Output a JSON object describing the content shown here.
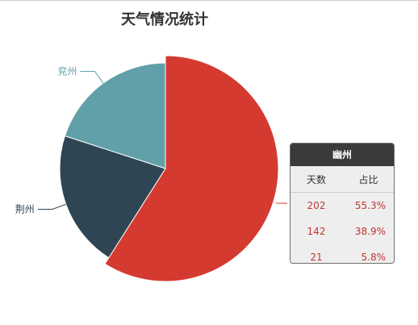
{
  "chart_data": {
    "type": "pie",
    "title": "天气情况统计",
    "series": [
      {
        "name": "幽州",
        "value": 59,
        "color": "#d43a30"
      },
      {
        "name": "荆州",
        "value": 21,
        "color": "#2f4554"
      },
      {
        "name": "兖州",
        "value": 20,
        "color": "#61a0a8"
      }
    ],
    "visible_labels": [
      "荆州",
      "兖州"
    ],
    "start_angle_deg": 90,
    "direction": "clockwise"
  },
  "tooltip": {
    "title": "幽州",
    "headers": [
      "天数",
      "占比"
    ],
    "rows": [
      [
        "202",
        "55.3%"
      ],
      [
        "142",
        "38.9%"
      ],
      [
        "21",
        "5.8%"
      ]
    ]
  }
}
